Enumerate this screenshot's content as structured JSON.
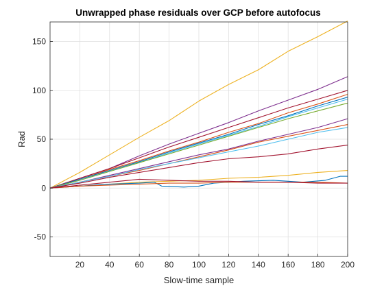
{
  "chart_data": {
    "type": "line",
    "title": "Unwrapped phase residuals over GCP before autofocus",
    "xlabel": "Slow-time sample",
    "ylabel": "Rad",
    "xlim": [
      0,
      200
    ],
    "ylim": [
      -70,
      170
    ],
    "xticks": [
      20,
      40,
      60,
      80,
      100,
      120,
      140,
      160,
      180,
      200
    ],
    "yticks": [
      -50,
      0,
      50,
      100,
      150
    ],
    "grid": true,
    "legend": "none",
    "series": [
      {
        "color": "#EDB120",
        "points": [
          [
            0,
            0
          ],
          [
            20,
            16
          ],
          [
            40,
            34
          ],
          [
            60,
            52
          ],
          [
            80,
            69
          ],
          [
            100,
            89
          ],
          [
            120,
            106
          ],
          [
            140,
            121
          ],
          [
            160,
            140
          ],
          [
            180,
            155
          ],
          [
            200,
            171
          ]
        ]
      },
      {
        "color": "#7E2F8E",
        "points": [
          [
            0,
            0
          ],
          [
            20,
            10
          ],
          [
            40,
            20
          ],
          [
            60,
            33
          ],
          [
            80,
            45
          ],
          [
            100,
            56
          ],
          [
            120,
            67
          ],
          [
            140,
            79
          ],
          [
            160,
            90
          ],
          [
            180,
            101
          ],
          [
            200,
            114
          ]
        ]
      },
      {
        "color": "#A2142F",
        "points": [
          [
            0,
            0
          ],
          [
            20,
            10
          ],
          [
            40,
            20
          ],
          [
            60,
            31
          ],
          [
            80,
            42
          ],
          [
            100,
            52
          ],
          [
            120,
            62
          ],
          [
            140,
            72
          ],
          [
            160,
            82
          ],
          [
            180,
            91
          ],
          [
            200,
            100
          ]
        ]
      },
      {
        "color": "#D95319",
        "points": [
          [
            0,
            0
          ],
          [
            20,
            9
          ],
          [
            40,
            19
          ],
          [
            60,
            28
          ],
          [
            80,
            38
          ],
          [
            100,
            47
          ],
          [
            120,
            57
          ],
          [
            140,
            66
          ],
          [
            160,
            77
          ],
          [
            180,
            86
          ],
          [
            200,
            96
          ]
        ]
      },
      {
        "color": "#0072BD",
        "points": [
          [
            0,
            0
          ],
          [
            20,
            9
          ],
          [
            40,
            18
          ],
          [
            60,
            27
          ],
          [
            80,
            37
          ],
          [
            100,
            46
          ],
          [
            120,
            55
          ],
          [
            140,
            65
          ],
          [
            160,
            74
          ],
          [
            180,
            84
          ],
          [
            200,
            93
          ]
        ]
      },
      {
        "color": "#4DBEEE",
        "points": [
          [
            0,
            0
          ],
          [
            20,
            8
          ],
          [
            40,
            17
          ],
          [
            60,
            26
          ],
          [
            80,
            36
          ],
          [
            100,
            45
          ],
          [
            120,
            54
          ],
          [
            140,
            63
          ],
          [
            160,
            73
          ],
          [
            180,
            82
          ],
          [
            200,
            91
          ]
        ]
      },
      {
        "color": "#77AC30",
        "points": [
          [
            0,
            0
          ],
          [
            20,
            8
          ],
          [
            40,
            17
          ],
          [
            60,
            26
          ],
          [
            80,
            35
          ],
          [
            100,
            44
          ],
          [
            120,
            53
          ],
          [
            140,
            62
          ],
          [
            160,
            71
          ],
          [
            180,
            79
          ],
          [
            200,
            87
          ]
        ]
      },
      {
        "color": "#7E2F8E",
        "points": [
          [
            0,
            0
          ],
          [
            20,
            6
          ],
          [
            40,
            13
          ],
          [
            60,
            20
          ],
          [
            80,
            27
          ],
          [
            100,
            34
          ],
          [
            120,
            40
          ],
          [
            140,
            48
          ],
          [
            160,
            55
          ],
          [
            180,
            62
          ],
          [
            200,
            71
          ]
        ]
      },
      {
        "color": "#D95319",
        "points": [
          [
            0,
            0
          ],
          [
            20,
            6
          ],
          [
            40,
            12
          ],
          [
            60,
            18
          ],
          [
            80,
            25
          ],
          [
            100,
            32
          ],
          [
            120,
            39
          ],
          [
            140,
            47
          ],
          [
            160,
            53
          ],
          [
            180,
            59
          ],
          [
            200,
            65
          ]
        ]
      },
      {
        "color": "#4DBEEE",
        "points": [
          [
            0,
            0
          ],
          [
            20,
            6
          ],
          [
            40,
            12
          ],
          [
            60,
            19
          ],
          [
            80,
            25
          ],
          [
            100,
            31
          ],
          [
            120,
            37
          ],
          [
            140,
            43
          ],
          [
            160,
            50
          ],
          [
            180,
            57
          ],
          [
            200,
            62
          ]
        ]
      },
      {
        "color": "#A2142F",
        "points": [
          [
            0,
            0
          ],
          [
            20,
            5
          ],
          [
            40,
            11
          ],
          [
            60,
            16
          ],
          [
            80,
            21
          ],
          [
            100,
            26
          ],
          [
            120,
            30
          ],
          [
            140,
            32
          ],
          [
            160,
            35
          ],
          [
            180,
            40
          ],
          [
            200,
            44
          ]
        ]
      },
      {
        "color": "#EDB120",
        "points": [
          [
            0,
            0
          ],
          [
            20,
            2
          ],
          [
            40,
            4
          ],
          [
            60,
            6
          ],
          [
            80,
            7
          ],
          [
            100,
            8
          ],
          [
            120,
            10
          ],
          [
            140,
            11
          ],
          [
            160,
            13
          ],
          [
            180,
            16
          ],
          [
            200,
            18
          ]
        ]
      },
      {
        "color": "#0072BD",
        "points": [
          [
            0,
            0
          ],
          [
            20,
            2
          ],
          [
            40,
            4
          ],
          [
            60,
            5
          ],
          [
            70,
            6
          ],
          [
            75,
            2
          ],
          [
            90,
            1
          ],
          [
            100,
            2
          ],
          [
            110,
            5
          ],
          [
            130,
            7
          ],
          [
            150,
            8
          ],
          [
            170,
            6
          ],
          [
            185,
            8
          ],
          [
            195,
            12
          ],
          [
            200,
            12
          ]
        ]
      },
      {
        "color": "#D95319",
        "points": [
          [
            0,
            0
          ],
          [
            20,
            2
          ],
          [
            40,
            3
          ],
          [
            60,
            4
          ],
          [
            80,
            5
          ],
          [
            100,
            5
          ],
          [
            120,
            6
          ],
          [
            140,
            6
          ],
          [
            160,
            6
          ],
          [
            180,
            6
          ],
          [
            200,
            5
          ]
        ]
      },
      {
        "color": "#A2142F",
        "points": [
          [
            0,
            0
          ],
          [
            20,
            3
          ],
          [
            40,
            6
          ],
          [
            60,
            9
          ],
          [
            80,
            8
          ],
          [
            100,
            7
          ],
          [
            120,
            7
          ],
          [
            140,
            6
          ],
          [
            160,
            6
          ],
          [
            180,
            5
          ],
          [
            200,
            5
          ]
        ]
      }
    ]
  }
}
